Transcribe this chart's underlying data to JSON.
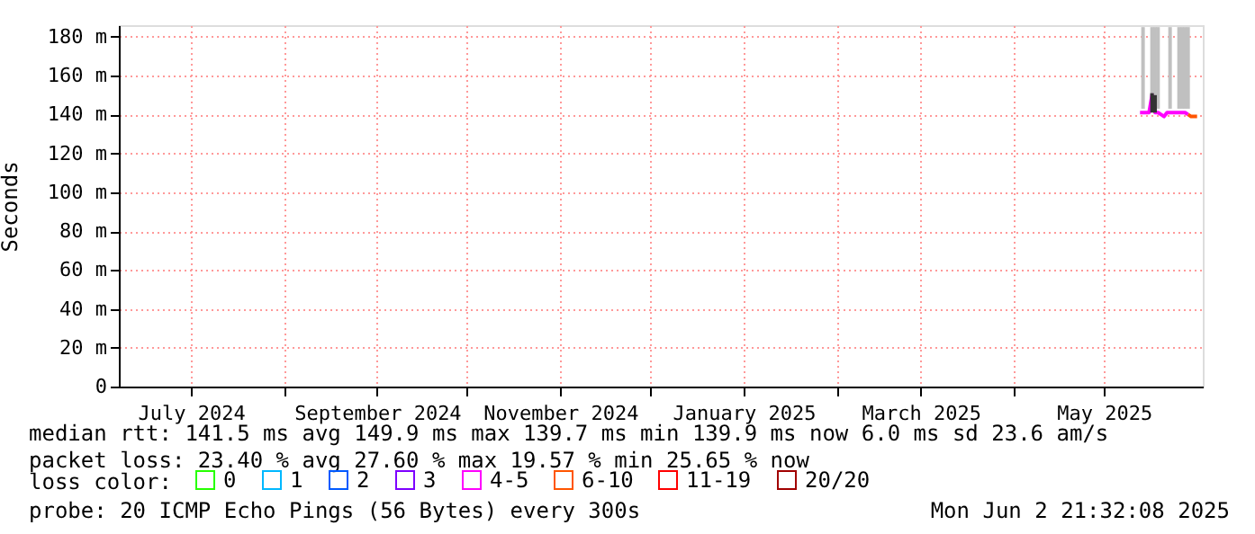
{
  "chart_data": {
    "type": "line",
    "ylabel": "Seconds",
    "xlim": [
      "2024-06-07",
      "2025-06-02T21:32"
    ],
    "xticks": [
      {
        "value": "2024-07-01",
        "label": "July 2024"
      },
      {
        "value": "2024-08-01",
        "label": null
      },
      {
        "value": "2024-09-01",
        "label": "September 2024"
      },
      {
        "value": "2024-10-01",
        "label": null
      },
      {
        "value": "2024-11-01",
        "label": "November 2024"
      },
      {
        "value": "2024-12-01",
        "label": null
      },
      {
        "value": "2025-01-01",
        "label": "January 2025"
      },
      {
        "value": "2025-02-01",
        "label": null
      },
      {
        "value": "2025-03-01",
        "label": "March 2025"
      },
      {
        "value": "2025-04-01",
        "label": null
      },
      {
        "value": "2025-05-01",
        "label": "May 2025"
      }
    ],
    "ylim": [
      0,
      186
    ],
    "yticks": [
      0,
      {
        "value": 20,
        "label": "20 m"
      },
      {
        "value": 40,
        "label": "40 m"
      },
      {
        "value": 60,
        "label": "60 m"
      },
      {
        "value": 80,
        "label": "80 m"
      },
      {
        "value": 100,
        "label": "100 m"
      },
      {
        "value": 120,
        "label": "120 m"
      },
      {
        "value": 140,
        "label": "140 m"
      },
      {
        "value": 160,
        "label": "160 m"
      },
      {
        "value": 180,
        "label": "180 m"
      }
    ],
    "grid": true,
    "legend": "bottom",
    "legend_title": "loss color:",
    "marker": "none",
    "line_style": "solid",
    "series": [
      {
        "type": "bar",
        "color": "#c0c0c0",
        "x": [
          "2025-05-14",
          "2025-05-17",
          "2025-05-18",
          "2025-05-19",
          "2025-05-23",
          "2025-05-26",
          "2025-05-27",
          "2025-05-28",
          "2025-05-29"
        ],
        "base": [
          143,
          143,
          143,
          143,
          143,
          143,
          143,
          143,
          143
        ],
        "values": [
          42,
          42,
          42,
          42,
          42,
          42,
          42,
          42,
          42
        ]
      },
      {
        "name": "0",
        "color": "#26ff00"
      },
      {
        "name": "1",
        "color": "#00b8ff"
      },
      {
        "name": "2",
        "color": "#0059ff"
      },
      {
        "name": "3",
        "color": "#7e00ff"
      },
      {
        "name": "4-5",
        "color": "#ff00fe",
        "x": [
          "2025-05-13",
          "2025-05-14",
          "2025-05-15",
          "2025-05-16",
          "2025-05-17",
          "2025-05-18",
          "2025-05-19",
          "2025-05-20",
          "2025-05-21",
          "2025-05-22",
          "2025-05-23",
          "2025-05-24",
          "2025-05-25",
          "2025-05-26",
          "2025-05-27",
          "2025-05-28",
          "2025-05-29"
        ],
        "values": [
          141,
          141,
          141,
          141,
          150,
          141,
          141,
          140,
          139,
          141,
          141,
          141,
          141,
          141,
          141,
          141,
          140
        ]
      },
      {
        "name": "6-10",
        "color": "#ff5500",
        "x": [
          "2025-05-29",
          "2025-05-30",
          "2025-05-31",
          "2025-06-01"
        ],
        "values": [
          140,
          139,
          139,
          139
        ]
      },
      {
        "name": "11-19",
        "color": "#ff0000"
      },
      {
        "name": "20/20",
        "color": "#a10000"
      },
      {
        "type": "bar",
        "color": "#333333",
        "x": [
          "2025-05-17",
          "2025-05-18"
        ],
        "base": [
          141,
          141
        ],
        "values": [
          10,
          9
        ]
      }
    ],
    "annotations": [
      "median rtt:  141.5 ms avg  149.9 ms max  139.7 ms min  139.9 ms now  6.0 ms sd  23.6   am/s",
      "packet loss: 23.40 % avg  27.60 % max  19.57 % min  25.65 % now",
      "probe:       20 ICMP Echo Pings (56 Bytes) every 300s",
      "Mon Jun  2 21:32:08 2025"
    ]
  }
}
